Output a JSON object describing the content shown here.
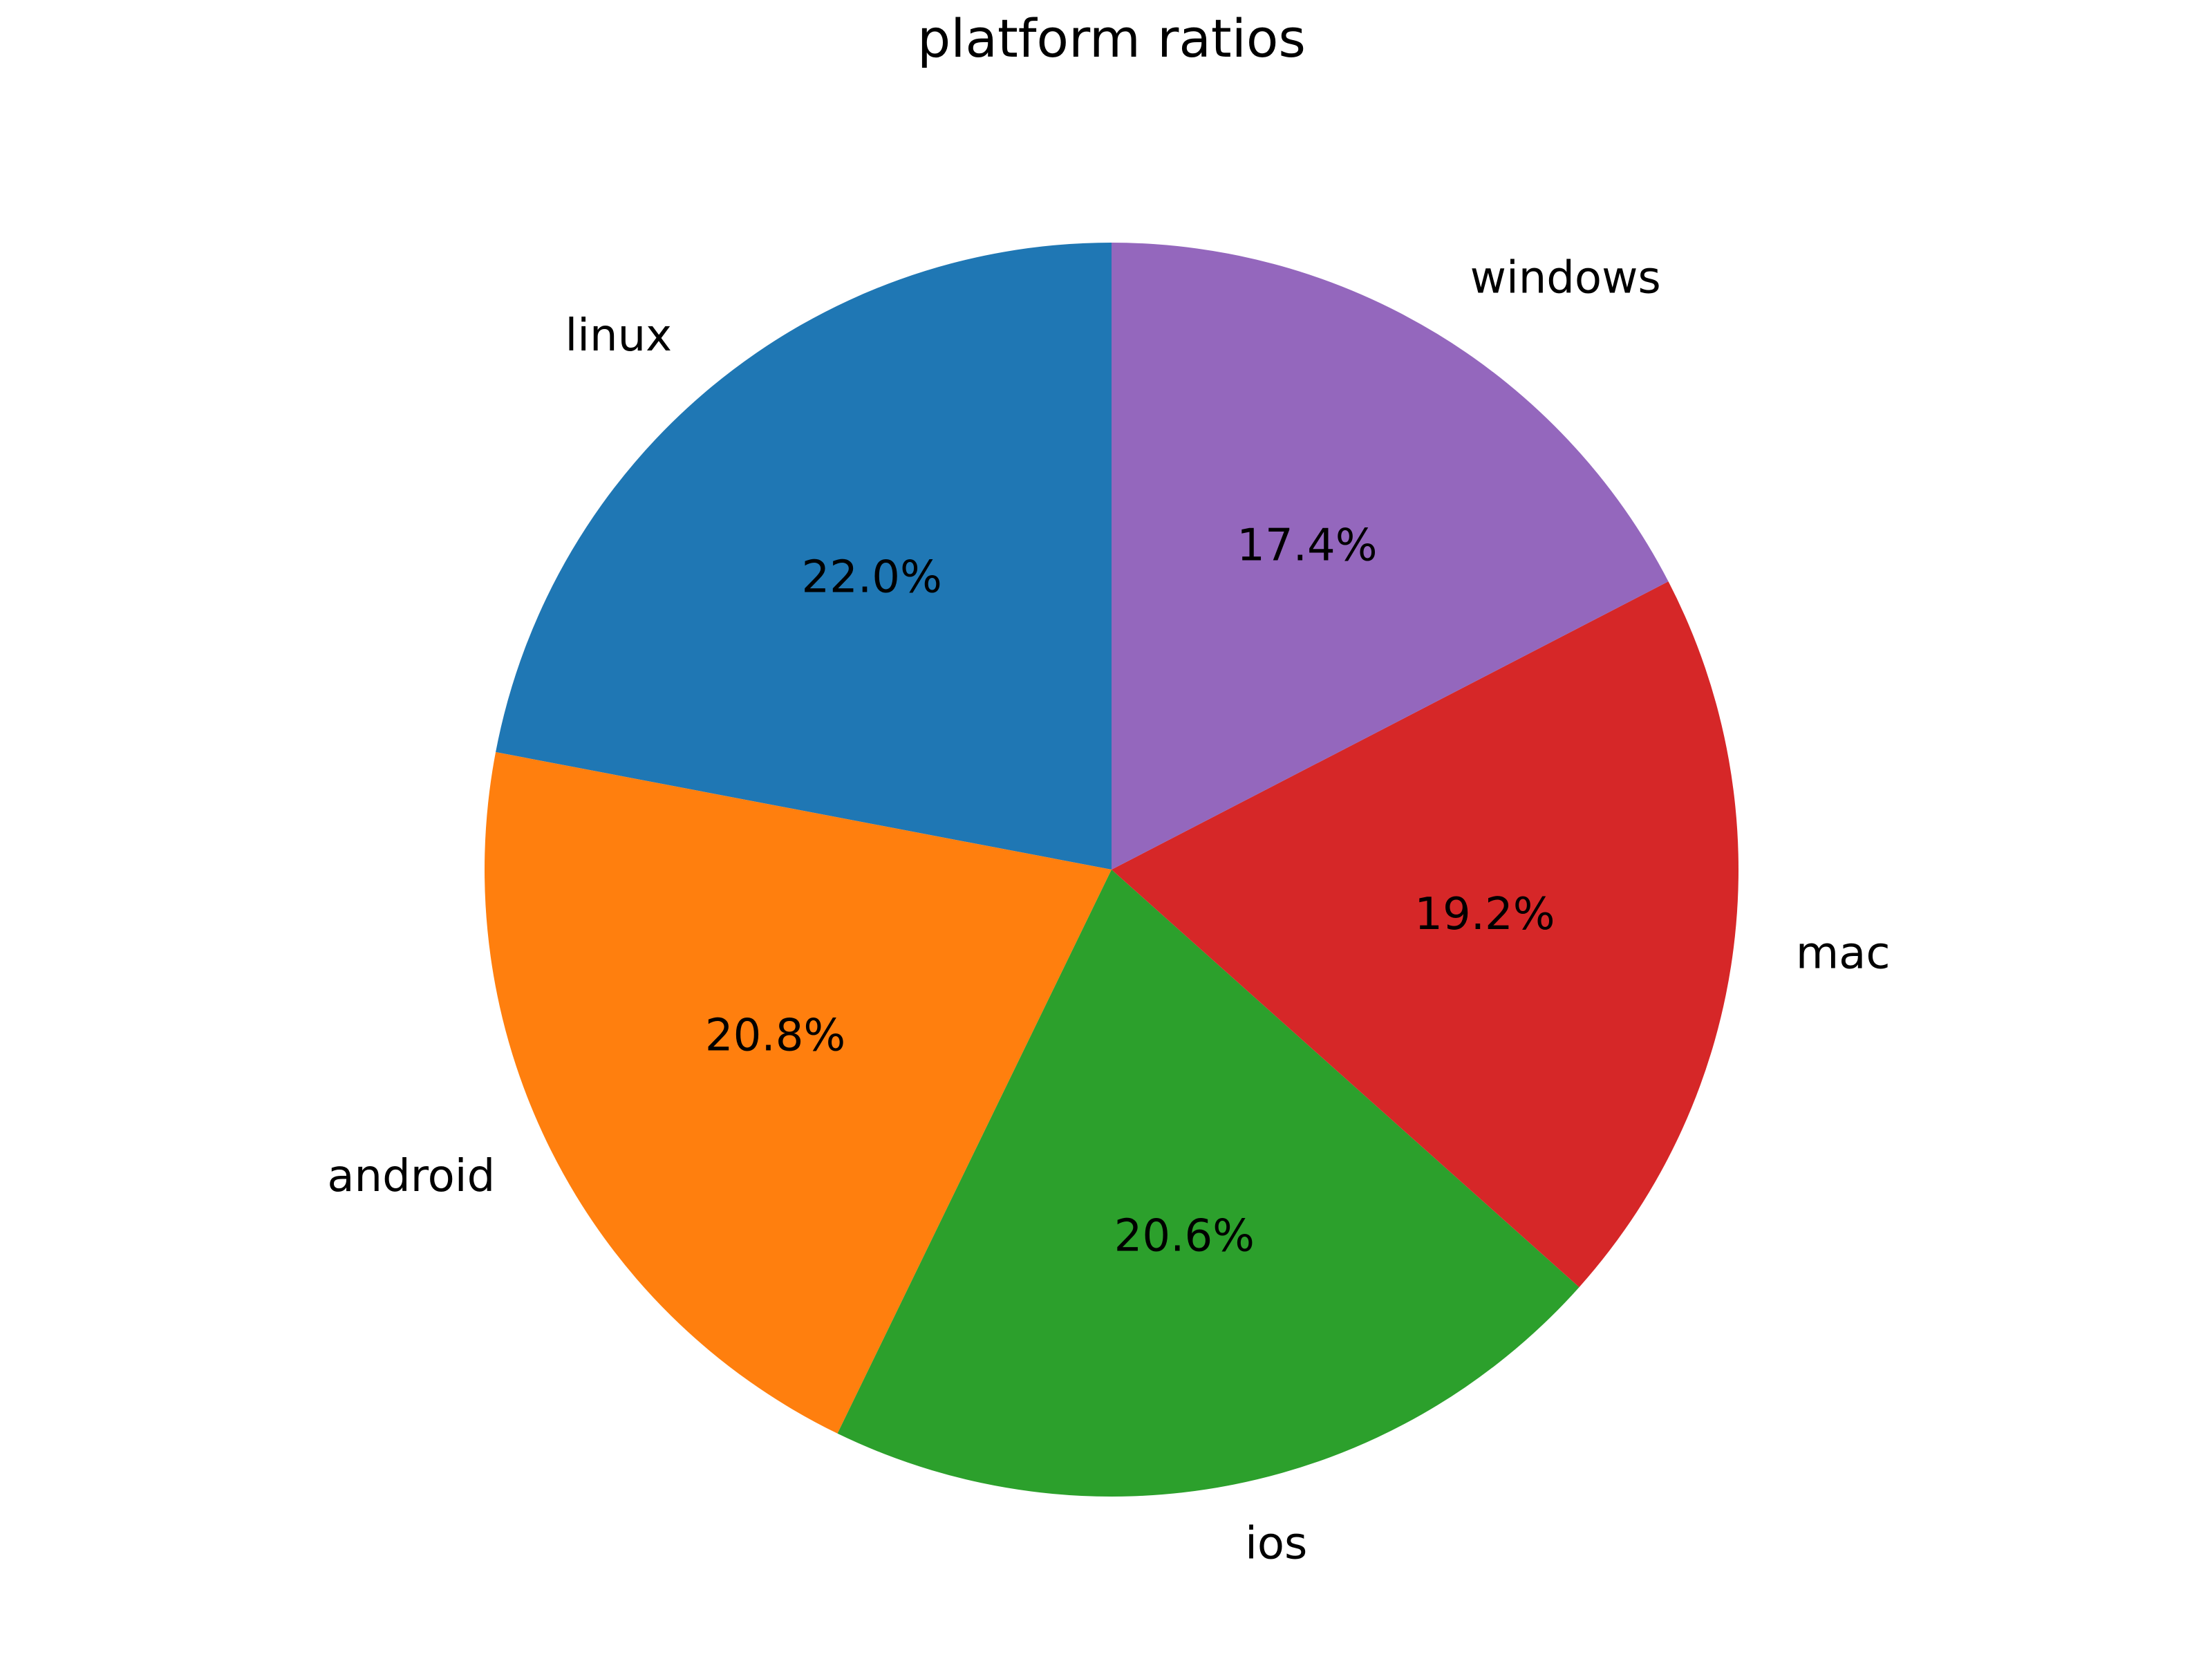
{
  "chart_data": {
    "type": "pie",
    "title": "platform ratios",
    "start_angle_deg": 90,
    "direction": "counterclockwise",
    "slices": [
      {
        "label": "linux",
        "value": 22.0,
        "pct_label": "22.0%",
        "color": "#1f77b4"
      },
      {
        "label": "android",
        "value": 20.8,
        "pct_label": "20.8%",
        "color": "#ff7f0e"
      },
      {
        "label": "ios",
        "value": 20.6,
        "pct_label": "20.6%",
        "color": "#2ca02c"
      },
      {
        "label": "mac",
        "value": 19.2,
        "pct_label": "19.2%",
        "color": "#d62728"
      },
      {
        "label": "windows",
        "value": 17.4,
        "pct_label": "17.4%",
        "color": "#9467bd"
      }
    ]
  }
}
